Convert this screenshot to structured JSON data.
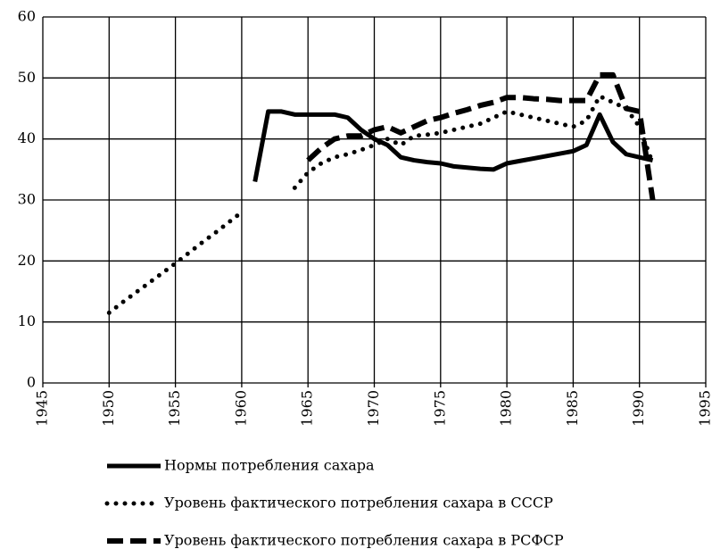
{
  "chart_data": {
    "type": "line",
    "x": [
      1950,
      1951,
      1952,
      1953,
      1954,
      1955,
      1956,
      1957,
      1958,
      1959,
      1960,
      1961,
      1962,
      1963,
      1964,
      1965,
      1966,
      1967,
      1968,
      1969,
      1970,
      1971,
      1972,
      1973,
      1974,
      1975,
      1976,
      1977,
      1978,
      1979,
      1980,
      1981,
      1982,
      1983,
      1984,
      1985,
      1986,
      1987,
      1988,
      1989,
      1990,
      1991
    ],
    "series": [
      {
        "name": "Нормы потребления сахара",
        "color": "#000000",
        "style": "solid",
        "values": [
          null,
          null,
          null,
          null,
          null,
          null,
          null,
          null,
          null,
          null,
          null,
          33,
          44.5,
          44.5,
          44,
          44,
          44,
          44,
          43.5,
          41.5,
          40,
          39,
          37,
          36.5,
          36.2,
          36,
          35.5,
          35.3,
          35.1,
          35,
          36,
          36.4,
          36.8,
          37.2,
          37.6,
          38,
          39,
          44,
          39.5,
          37.5,
          37,
          36.5
        ]
      },
      {
        "name": "Уровень фактического потребления сахара в СССР",
        "color": "#000000",
        "style": "dotted",
        "values": [
          11.5,
          13.2,
          14.8,
          16.4,
          18,
          19.6,
          21.3,
          23,
          24.6,
          26.3,
          28,
          null,
          null,
          null,
          32,
          34.5,
          36,
          37,
          37.5,
          38.2,
          39,
          40,
          39,
          40.5,
          40.7,
          41,
          41.5,
          42,
          42.5,
          43.5,
          44.5,
          44,
          43.5,
          43,
          42.5,
          42,
          43,
          47,
          46,
          45,
          42,
          36
        ]
      },
      {
        "name": "Уровень фактического потребления сахара в РСФСР",
        "color": "#000000",
        "style": "dashed",
        "values": [
          null,
          null,
          null,
          null,
          null,
          null,
          null,
          null,
          null,
          null,
          null,
          null,
          null,
          null,
          null,
          36.5,
          38.5,
          40,
          40.5,
          40.5,
          41.5,
          42,
          41,
          42,
          43,
          43.5,
          44.2,
          44.8,
          45.5,
          46,
          46.8,
          46.8,
          46.6,
          46.5,
          46.3,
          46.3,
          46.3,
          50.5,
          50.5,
          45,
          44.5,
          30
        ]
      }
    ],
    "xlim": [
      1945,
      1995
    ],
    "xticks": [
      1945,
      1950,
      1955,
      1960,
      1965,
      1970,
      1975,
      1980,
      1985,
      1990,
      1995
    ],
    "ylim": [
      0,
      60
    ],
    "yticks": [
      0,
      10,
      20,
      30,
      40,
      50,
      60
    ],
    "grid": true,
    "legend": "bottom"
  }
}
